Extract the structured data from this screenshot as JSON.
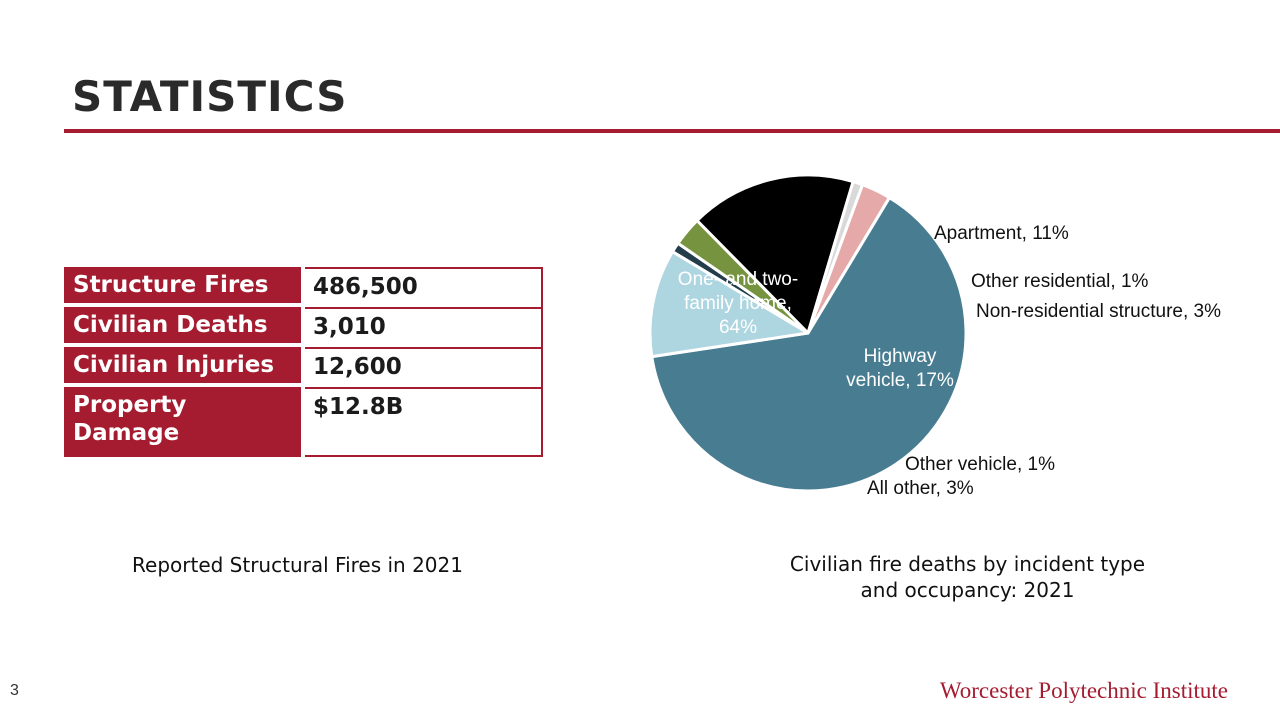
{
  "slide": {
    "title": "STATISTICS",
    "page_number": "3",
    "brand": "Worcester Polytechnic Institute"
  },
  "table": {
    "rows": [
      {
        "label": "Structure Fires",
        "value": "486,500"
      },
      {
        "label": "Civilian Deaths",
        "value": "3,010"
      },
      {
        "label": "Civilian Injuries",
        "value": "12,600"
      },
      {
        "label": "Property Damage",
        "value": "$12.8B"
      }
    ],
    "caption": "Reported Structural Fires in 2021"
  },
  "colors": {
    "accent": "#a51c30"
  },
  "chart_data": {
    "type": "pie",
    "caption_lines": [
      "Civilian fire deaths by incident type",
      "and occupancy: 2021"
    ],
    "slices": [
      {
        "label_lines": [
          "One- and two-",
          "family home,",
          "64%"
        ],
        "value": 64,
        "color": "#487d91"
      },
      {
        "label_lines": [
          "Apartment, 11%"
        ],
        "value": 11,
        "color": "#aed6e0"
      },
      {
        "label_lines": [
          "Other residential, 1%"
        ],
        "value": 1,
        "color": "#233d4a"
      },
      {
        "label_lines": [
          "Non-residential structure, 3%"
        ],
        "value": 3,
        "color": "#76943f"
      },
      {
        "label_lines": [
          "Highway",
          "vehicle, 17%"
        ],
        "value": 17,
        "color": "#000000"
      },
      {
        "label_lines": [
          "Other vehicle, 1%"
        ],
        "value": 1,
        "color": "#d9d9d9"
      },
      {
        "label_lines": [
          "All other, 3%"
        ],
        "value": 3,
        "color": "#e5a9a9"
      }
    ]
  }
}
